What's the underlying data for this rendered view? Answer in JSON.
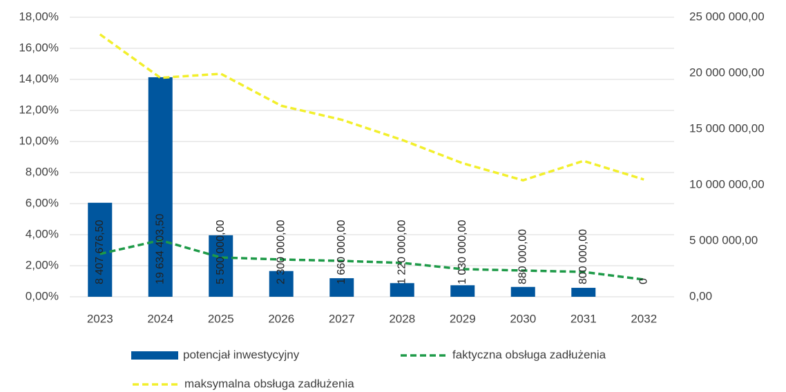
{
  "chart_data": {
    "type": "bar",
    "categories": [
      "2023",
      "2024",
      "2025",
      "2026",
      "2027",
      "2028",
      "2029",
      "2030",
      "2031",
      "2032"
    ],
    "series": [
      {
        "name": "potencjał inwestycyjny",
        "type": "bar",
        "axis": "y2",
        "color": "#00569e",
        "values": [
          8407676.5,
          19634403.5,
          5500000,
          2300000,
          1660000,
          1220000,
          1030000,
          880000,
          800000,
          0
        ],
        "value_labels": [
          "8 407 676,50",
          "19 634 403,50",
          "5 500 000,00",
          "2 300 000,00",
          "1 660 000,00",
          "1 220 000,00",
          "1 030 000,00",
          "880 000,00",
          "800 000,00",
          "0"
        ]
      },
      {
        "name": "faktyczna obsługa zadłużenia",
        "type": "line",
        "dash": true,
        "color": "#1e9a48",
        "values": [
          2.76,
          3.64,
          2.53,
          2.4,
          2.31,
          2.18,
          1.78,
          1.69,
          1.6,
          1.11
        ]
      },
      {
        "name": "maksymalna obsługa zadłużenia",
        "type": "line",
        "dash": true,
        "color": "#f2ef2c",
        "values": [
          16.9,
          14.1,
          14.36,
          12.3,
          11.4,
          10.1,
          8.6,
          7.5,
          8.75,
          7.55
        ]
      }
    ],
    "ylim": [
      0,
      18
    ],
    "yticks": [
      {
        "value": 0,
        "label": "0,00%"
      },
      {
        "value": 2,
        "label": "2,00%"
      },
      {
        "value": 4,
        "label": "4,00%"
      },
      {
        "value": 6,
        "label": "6,00%"
      },
      {
        "value": 8,
        "label": "8,00%"
      },
      {
        "value": 10,
        "label": "10,00%"
      },
      {
        "value": 12,
        "label": "12,00%"
      },
      {
        "value": 14,
        "label": "14,00%"
      },
      {
        "value": 16,
        "label": "16,00%"
      },
      {
        "value": 18,
        "label": "18,00%"
      }
    ],
    "y2lim": [
      0,
      25000000
    ],
    "y2ticks": [
      {
        "value": 0,
        "label": "0,00"
      },
      {
        "value": 5000000,
        "label": "5 000 000,00"
      },
      {
        "value": 10000000,
        "label": "10 000 000,00"
      },
      {
        "value": 15000000,
        "label": "15 000 000,00"
      },
      {
        "value": 20000000,
        "label": "20 000 000,00"
      },
      {
        "value": 25000000,
        "label": "25 000 000,00"
      }
    ],
    "grid": true,
    "legend": "bottom"
  }
}
